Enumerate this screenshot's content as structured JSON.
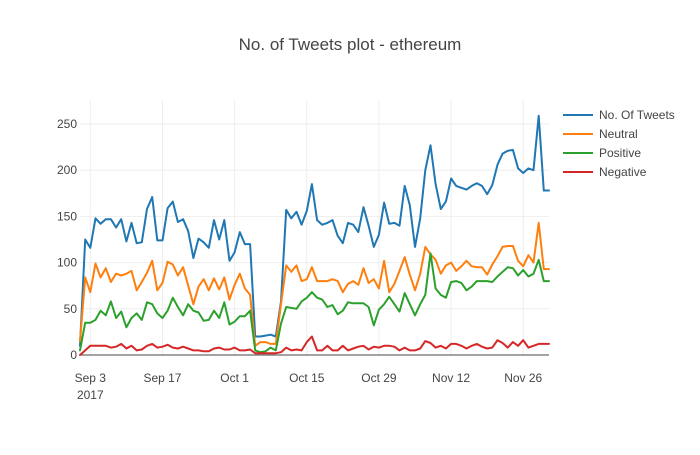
{
  "chart_data": {
    "type": "line",
    "title": "No. of Tweets plot - ethereum",
    "xlabel": "",
    "ylabel": "",
    "x": [
      "2017-09-01",
      "2017-09-02",
      "2017-09-03",
      "2017-09-04",
      "2017-09-05",
      "2017-09-06",
      "2017-09-07",
      "2017-09-08",
      "2017-09-09",
      "2017-09-10",
      "2017-09-11",
      "2017-09-12",
      "2017-09-13",
      "2017-09-14",
      "2017-09-15",
      "2017-09-16",
      "2017-09-17",
      "2017-09-18",
      "2017-09-19",
      "2017-09-20",
      "2017-09-21",
      "2017-09-22",
      "2017-09-23",
      "2017-09-24",
      "2017-09-25",
      "2017-09-26",
      "2017-09-27",
      "2017-09-28",
      "2017-09-29",
      "2017-09-30",
      "2017-10-01",
      "2017-10-02",
      "2017-10-03",
      "2017-10-04",
      "2017-10-05",
      "2017-10-06",
      "2017-10-07",
      "2017-10-08",
      "2017-10-09",
      "2017-10-10",
      "2017-10-11",
      "2017-10-12",
      "2017-10-13",
      "2017-10-14",
      "2017-10-15",
      "2017-10-16",
      "2017-10-17",
      "2017-10-18",
      "2017-10-19",
      "2017-10-20",
      "2017-10-21",
      "2017-10-22",
      "2017-10-23",
      "2017-10-24",
      "2017-10-25",
      "2017-10-26",
      "2017-10-27",
      "2017-10-28",
      "2017-10-29",
      "2017-10-30",
      "2017-10-31",
      "2017-11-01",
      "2017-11-02",
      "2017-11-03",
      "2017-11-04",
      "2017-11-05",
      "2017-11-06",
      "2017-11-07",
      "2017-11-08",
      "2017-11-09",
      "2017-11-10",
      "2017-11-11",
      "2017-11-12",
      "2017-11-13",
      "2017-11-14",
      "2017-11-15",
      "2017-11-16",
      "2017-11-17",
      "2017-11-18",
      "2017-11-19",
      "2017-11-20",
      "2017-11-21",
      "2017-11-22",
      "2017-11-23",
      "2017-11-24",
      "2017-11-25",
      "2017-11-26",
      "2017-11-27",
      "2017-11-28",
      "2017-11-29",
      "2017-11-30",
      "2017-12-01"
    ],
    "x_range": [
      "2017-09-01",
      "2017-12-01"
    ],
    "x_ticks": [
      {
        "value": "2017-09-03",
        "label": "Sep 3",
        "label2": "2017"
      },
      {
        "value": "2017-09-17",
        "label": "Sep 17"
      },
      {
        "value": "2017-10-01",
        "label": "Oct 1"
      },
      {
        "value": "2017-10-15",
        "label": "Oct 15"
      },
      {
        "value": "2017-10-29",
        "label": "Oct 29"
      },
      {
        "value": "2017-11-12",
        "label": "Nov 12"
      },
      {
        "value": "2017-11-26",
        "label": "Nov 26"
      }
    ],
    "ylim": [
      0,
      276
    ],
    "y_ticks": [
      0,
      50,
      100,
      150,
      200,
      250
    ],
    "grid": true,
    "legend_position": "top-right",
    "series": [
      {
        "name": "No. Of Tweets",
        "color": "#1f77b4",
        "values": [
          10,
          125,
          116,
          148,
          142,
          147,
          147,
          138,
          147,
          123,
          143,
          121,
          122,
          158,
          171,
          124,
          124,
          159,
          166,
          144,
          147,
          134,
          105,
          126,
          122,
          116,
          146,
          125,
          146,
          102,
          111,
          133,
          120,
          120,
          20,
          20,
          21,
          22,
          20,
          58,
          157,
          148,
          155,
          141,
          156,
          185,
          146,
          141,
          143,
          146,
          129,
          121,
          143,
          141,
          133,
          160,
          140,
          117,
          130,
          165,
          142,
          143,
          140,
          183,
          162,
          117,
          148,
          200,
          227,
          185,
          158,
          166,
          191,
          183,
          181,
          179,
          183,
          186,
          183,
          174,
          184,
          206,
          218,
          221,
          222,
          202,
          197,
          202,
          200,
          259,
          178,
          178
        ]
      },
      {
        "name": "Neutral",
        "color": "#ff7f0e",
        "values": [
          15,
          84,
          68,
          99,
          84,
          94,
          79,
          88,
          86,
          88,
          91,
          70,
          79,
          89,
          102,
          70,
          78,
          101,
          98,
          86,
          95,
          75,
          55,
          74,
          82,
          70,
          83,
          71,
          84,
          60,
          76,
          88,
          72,
          65,
          10,
          14,
          14,
          12,
          12,
          55,
          97,
          90,
          97,
          80,
          82,
          95,
          80,
          80,
          80,
          82,
          80,
          68,
          77,
          80,
          76,
          94,
          78,
          82,
          72,
          102,
          68,
          77,
          91,
          106,
          87,
          70,
          88,
          117,
          109,
          103,
          88,
          97,
          100,
          91,
          96,
          102,
          96,
          95,
          95,
          87,
          98,
          107,
          117,
          118,
          118,
          102,
          96,
          108,
          100,
          143,
          93,
          93
        ]
      },
      {
        "name": "Positive",
        "color": "#2ca02c",
        "values": [
          5,
          35,
          35,
          38,
          48,
          43,
          58,
          40,
          47,
          30,
          40,
          45,
          38,
          57,
          55,
          45,
          40,
          48,
          62,
          52,
          43,
          55,
          48,
          46,
          37,
          38,
          48,
          40,
          57,
          33,
          36,
          42,
          42,
          48,
          5,
          3,
          4,
          8,
          5,
          34,
          52,
          51,
          50,
          58,
          62,
          68,
          62,
          60,
          52,
          54,
          44,
          48,
          57,
          56,
          56,
          56,
          52,
          32,
          49,
          55,
          63,
          55,
          47,
          67,
          55,
          43,
          55,
          65,
          110,
          72,
          65,
          62,
          79,
          80,
          78,
          70,
          74,
          80,
          80,
          80,
          79,
          85,
          90,
          95,
          94,
          86,
          92,
          85,
          88,
          103,
          80,
          80
        ]
      },
      {
        "name": "Negative",
        "color": "#d62728",
        "values": [
          0,
          5,
          10,
          10,
          10,
          10,
          8,
          9,
          12,
          7,
          10,
          5,
          6,
          10,
          12,
          8,
          9,
          11,
          8,
          7,
          9,
          7,
          5,
          5,
          4,
          4,
          7,
          8,
          6,
          6,
          8,
          5,
          5,
          6,
          2,
          2,
          2,
          2,
          2,
          3,
          8,
          5,
          6,
          5,
          14,
          20,
          5,
          5,
          10,
          5,
          5,
          10,
          5,
          7,
          9,
          10,
          6,
          9,
          8,
          10,
          10,
          9,
          5,
          8,
          5,
          5,
          7,
          15,
          13,
          8,
          10,
          7,
          12,
          12,
          10,
          7,
          10,
          12,
          9,
          7,
          8,
          16,
          13,
          8,
          14,
          10,
          16,
          8,
          10,
          12,
          12,
          12
        ]
      }
    ]
  }
}
